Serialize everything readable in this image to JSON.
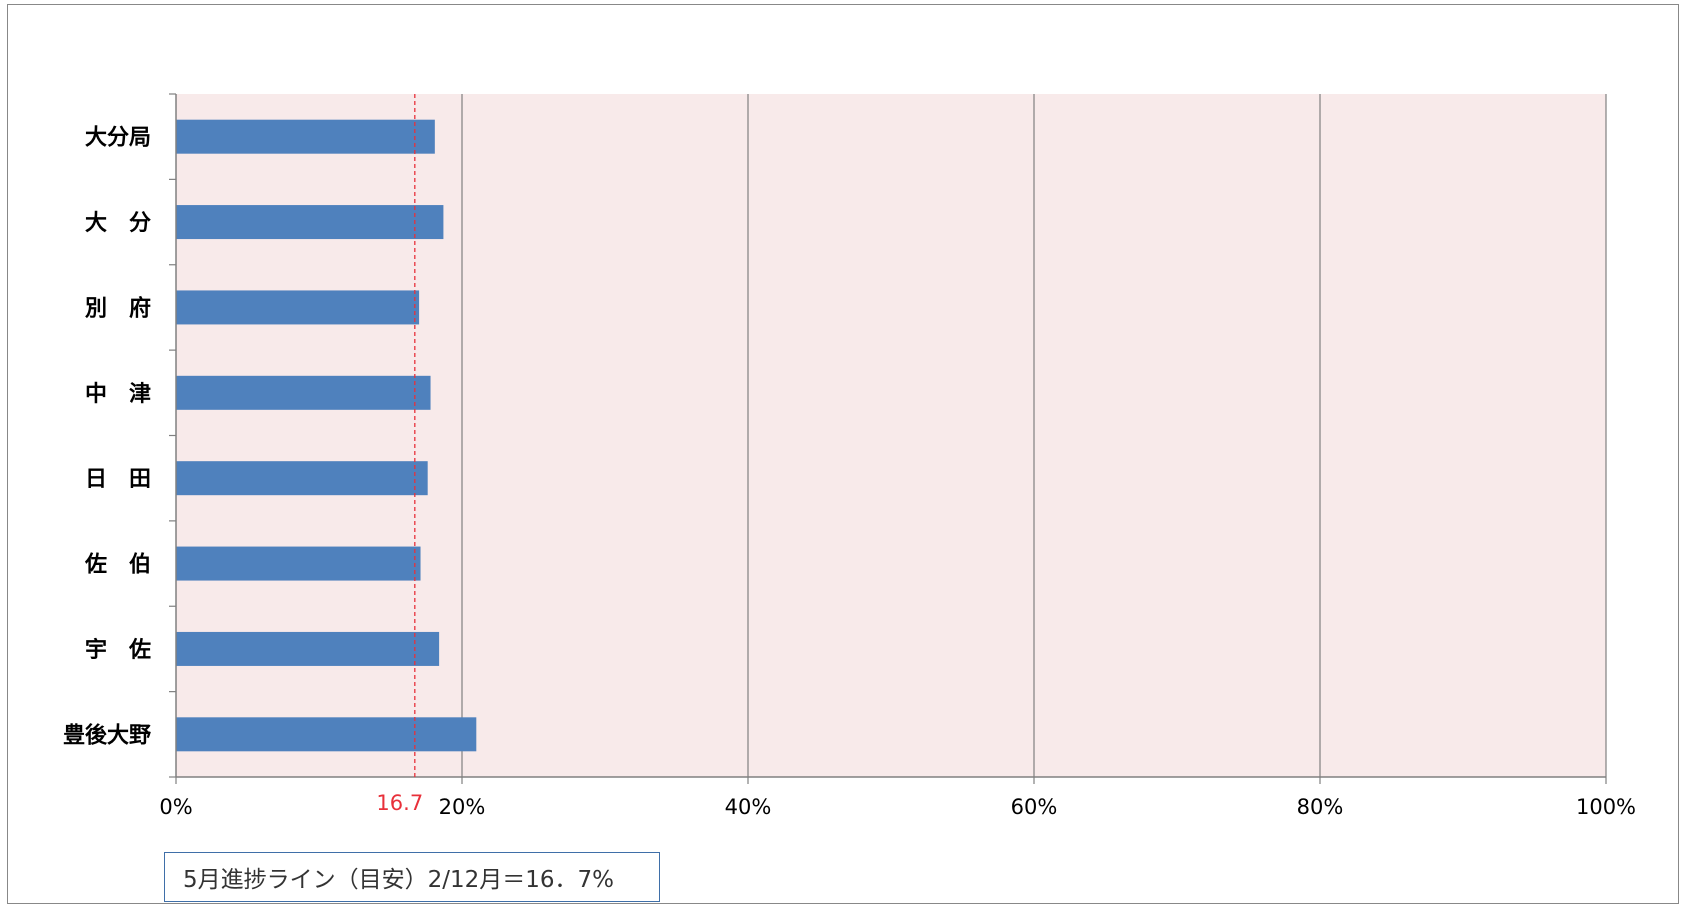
{
  "chart_data": {
    "type": "bar",
    "orientation": "horizontal",
    "categories": [
      "大分局",
      "大　分",
      "別　府",
      "中　津",
      "日　田",
      "佐　伯",
      "宇　佐",
      "豊後大野"
    ],
    "values": [
      18.1,
      18.7,
      17.0,
      17.8,
      17.6,
      17.1,
      18.4,
      21.0
    ],
    "xlim": [
      0,
      100
    ],
    "xticks": [
      0,
      20,
      40,
      60,
      80,
      100
    ],
    "xtick_labels": [
      "0%",
      "20%",
      "40%",
      "60%",
      "80%",
      "100%"
    ],
    "grid": "vertical",
    "reference_line": {
      "value": 16.7,
      "label": "16.7",
      "color": "#e8303a",
      "style": "dashed"
    },
    "colors": {
      "bar": "#4f81bd",
      "plot_background": "#f8eaea",
      "grid": "#808080"
    },
    "annotation": "5月進捗ライン（目安）2/12月＝16．7%"
  }
}
